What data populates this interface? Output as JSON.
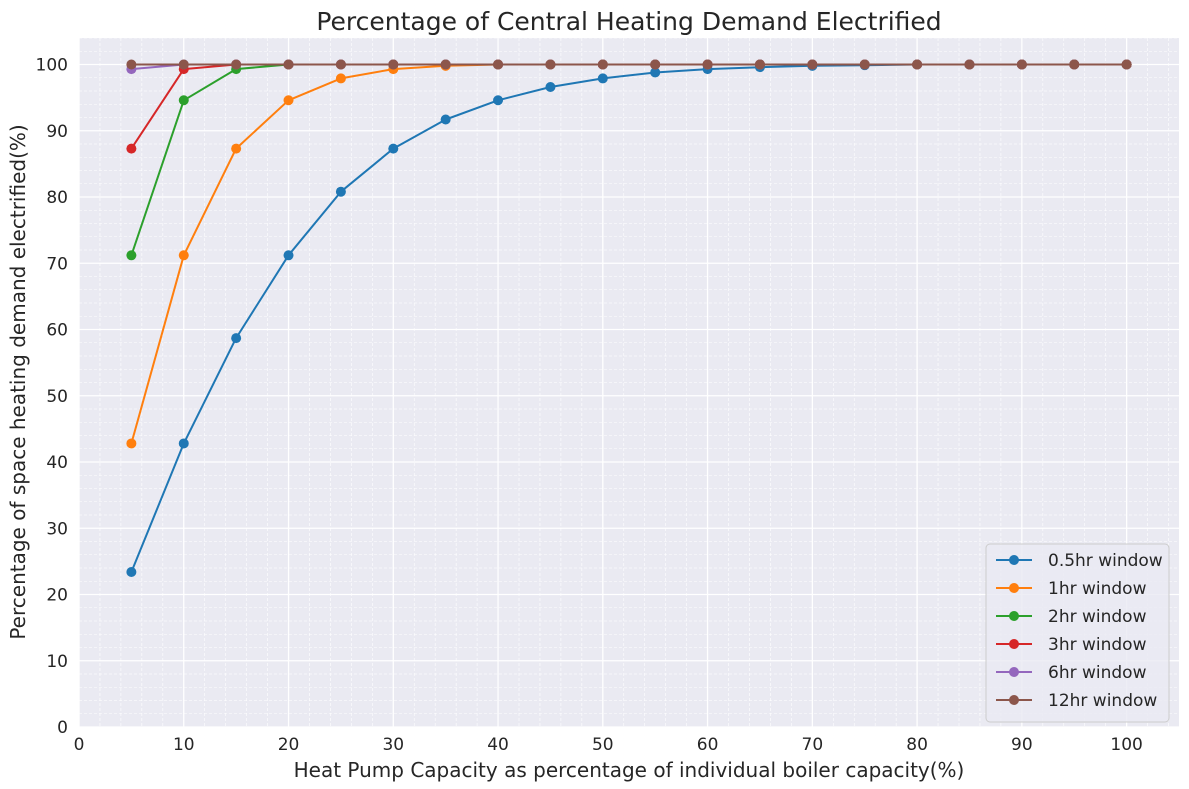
{
  "chart_data": {
    "type": "line",
    "title": "Percentage of Central Heating Demand Electrified",
    "xlabel": "Heat Pump Capacity as percentage of individual boiler capacity(%)",
    "ylabel": "Percentage of space heating demand electrified(%)",
    "xlim": [
      0,
      105
    ],
    "ylim": [
      0,
      104
    ],
    "xticks": [
      "0",
      "10",
      "20",
      "30",
      "40",
      "50",
      "60",
      "70",
      "80",
      "90",
      "100"
    ],
    "yticks": [
      "0",
      "10",
      "20",
      "30",
      "40",
      "50",
      "60",
      "70",
      "80",
      "90",
      "100"
    ],
    "grid": true,
    "legend_position": "bottom-right",
    "x": [
      5,
      10,
      15,
      20,
      25,
      30,
      35,
      40,
      45,
      50,
      55,
      60,
      65,
      70,
      75,
      80,
      85,
      90,
      95,
      100
    ],
    "series": [
      {
        "name": "0.5hr window",
        "color": "#1f77b4",
        "values": [
          23.4,
          42.8,
          58.7,
          71.2,
          80.8,
          87.3,
          91.7,
          94.6,
          96.6,
          97.9,
          98.8,
          99.3,
          99.6,
          99.8,
          99.9,
          100,
          100,
          100,
          100,
          100
        ]
      },
      {
        "name": "1hr window",
        "color": "#ff7f0e",
        "values": [
          42.8,
          71.2,
          87.3,
          94.6,
          97.9,
          99.3,
          99.8,
          100,
          100,
          100,
          100,
          100,
          100,
          100,
          100,
          100,
          100,
          100,
          100,
          100
        ]
      },
      {
        "name": "2hr window",
        "color": "#2ca02c",
        "values": [
          71.2,
          94.6,
          99.3,
          100,
          100,
          100,
          100,
          100,
          100,
          100,
          100,
          100,
          100,
          100,
          100,
          100,
          100,
          100,
          100,
          100
        ]
      },
      {
        "name": "3hr window",
        "color": "#d62728",
        "values": [
          87.3,
          99.3,
          100,
          100,
          100,
          100,
          100,
          100,
          100,
          100,
          100,
          100,
          100,
          100,
          100,
          100,
          100,
          100,
          100,
          100
        ]
      },
      {
        "name": "6hr window",
        "color": "#9467bd",
        "values": [
          99.3,
          100,
          100,
          100,
          100,
          100,
          100,
          100,
          100,
          100,
          100,
          100,
          100,
          100,
          100,
          100,
          100,
          100,
          100,
          100
        ]
      },
      {
        "name": "12hr window",
        "color": "#8c564b",
        "values": [
          100,
          100,
          100,
          100,
          100,
          100,
          100,
          100,
          100,
          100,
          100,
          100,
          100,
          100,
          100,
          100,
          100,
          100,
          100,
          100
        ]
      }
    ]
  }
}
